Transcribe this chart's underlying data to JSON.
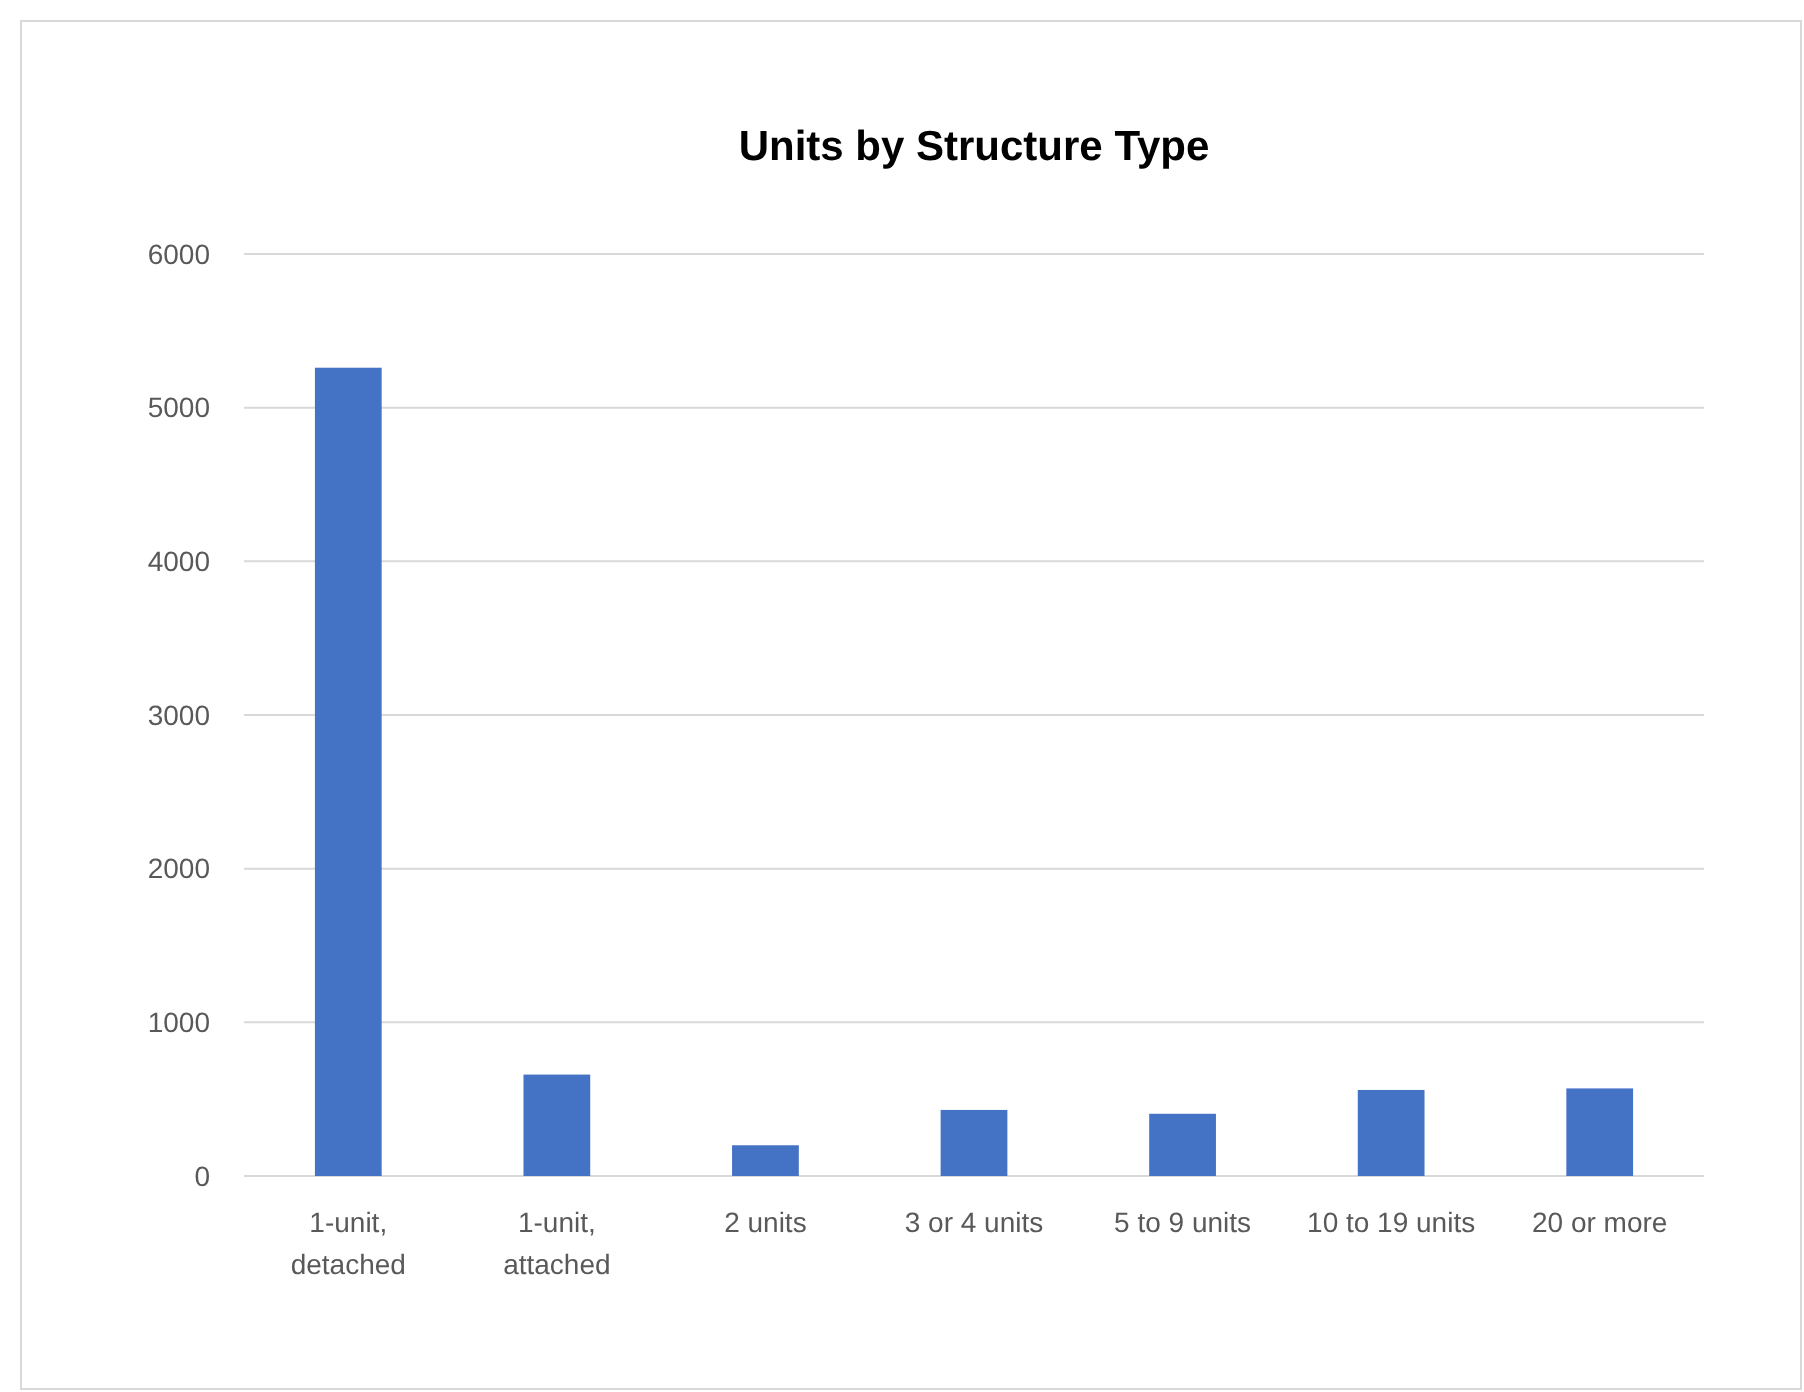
{
  "chart_data": {
    "type": "bar",
    "title": "Units by Structure Type",
    "categories": [
      "1-unit, detached",
      "1-unit, attached",
      "2 units",
      "3 or 4 units",
      "5 to 9 units",
      "10 to 19 units",
      "20 or more"
    ],
    "values": [
      5260,
      660,
      200,
      430,
      405,
      560,
      570
    ],
    "color": "#4472c4",
    "ylim": [
      0,
      6000
    ],
    "yticks": [
      0,
      1000,
      2000,
      3000,
      4000,
      5000,
      6000
    ],
    "grid": "y"
  }
}
